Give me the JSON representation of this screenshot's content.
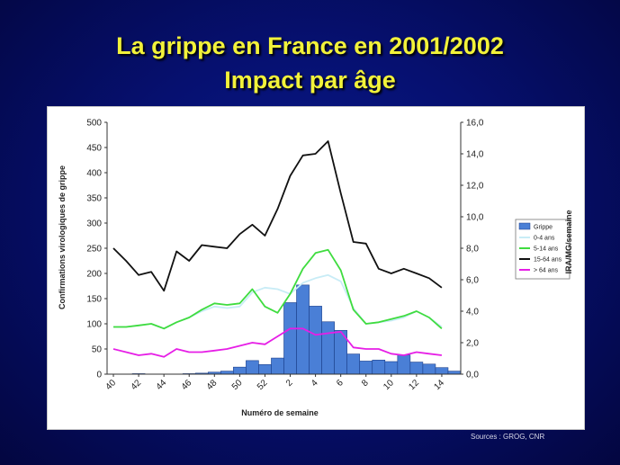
{
  "slide": {
    "title_line1": "La grippe en France en 2001/2002",
    "title_line2": "Impact par âge",
    "sources": "Sources : GROG, CNR"
  },
  "colors": {
    "background": "#061070",
    "title": "#f2f23a",
    "bars": "#4a7fd6",
    "age_0_4": "#c8ecf6",
    "age_5_14": "#3fdc3f",
    "age_15_64": "#111111",
    "age_65_plus": "#e61ee6"
  },
  "chart_data": {
    "type": "bar",
    "xlabel": "Numéro de semaine",
    "ylabel_left": "Confirmations virologiques de grippe",
    "ylabel_right": "IRA/MG/semaine",
    "left_axis": {
      "min": 0,
      "max": 500,
      "ticks": [
        "0",
        "50",
        "100",
        "150",
        "200",
        "250",
        "300",
        "350",
        "400",
        "450",
        "500"
      ]
    },
    "right_axis": {
      "min": 0,
      "max": 16,
      "ticks": [
        "0,0",
        "2,0",
        "4,0",
        "6,0",
        "8,0",
        "10,0",
        "12,0",
        "14,0",
        "16,0"
      ]
    },
    "weeks": [
      40,
      41,
      42,
      43,
      44,
      45,
      46,
      47,
      48,
      49,
      50,
      51,
      52,
      1,
      2,
      3,
      4,
      5,
      6,
      7,
      8,
      9,
      10,
      11,
      12,
      13,
      14,
      15
    ],
    "x_tick_labels": [
      "40",
      "42",
      "44",
      "46",
      "48",
      "50",
      "52",
      "2",
      "4",
      "6",
      "8",
      "10",
      "12",
      "14"
    ],
    "legend_position": "right",
    "legend": [
      "Grippe",
      "0-4 ans",
      "5-14 ans",
      "15-64 ans",
      "> 64 ans"
    ],
    "series": [
      {
        "name": "Grippe",
        "kind": "bar",
        "axis": "left",
        "values": [
          0,
          0,
          1,
          0,
          0,
          0,
          1,
          2,
          4,
          6,
          14,
          27,
          19,
          32,
          142,
          177,
          135,
          104,
          87,
          40,
          26,
          28,
          25,
          38,
          24,
          20,
          13,
          6
        ]
      },
      {
        "name": "0-4 ans",
        "kind": "line",
        "axis": "right",
        "values": [
          3.0,
          3.0,
          3.1,
          3.2,
          2.9,
          3.3,
          3.6,
          4.0,
          4.3,
          4.2,
          4.3,
          5.2,
          5.5,
          5.4,
          5.1,
          5.8,
          6.1,
          6.3,
          5.9,
          4.2,
          3.2,
          3.3,
          3.4,
          3.6,
          4.0,
          3.6,
          3.0,
          null
        ]
      },
      {
        "name": "5-14 ans",
        "kind": "line",
        "axis": "right",
        "values": [
          3.0,
          3.0,
          3.1,
          3.2,
          2.9,
          3.3,
          3.6,
          4.1,
          4.5,
          4.4,
          4.5,
          5.4,
          4.3,
          3.9,
          5.1,
          6.7,
          7.7,
          7.9,
          6.6,
          4.1,
          3.2,
          3.3,
          3.5,
          3.7,
          4.0,
          3.6,
          2.9,
          null
        ]
      },
      {
        "name": "15-64 ans",
        "kind": "line",
        "axis": "right",
        "values": [
          8.0,
          7.2,
          6.3,
          6.5,
          5.3,
          7.8,
          7.2,
          8.2,
          8.1,
          8.0,
          8.9,
          9.5,
          8.8,
          10.5,
          12.6,
          13.9,
          14.0,
          14.8,
          11.5,
          8.4,
          8.3,
          6.7,
          6.4,
          6.7,
          6.4,
          6.1,
          5.5,
          null
        ]
      },
      {
        "name": "> 64 ans",
        "kind": "line",
        "axis": "right",
        "values": [
          1.6,
          1.4,
          1.2,
          1.3,
          1.1,
          1.6,
          1.4,
          1.4,
          1.5,
          1.6,
          1.8,
          2.0,
          1.9,
          2.4,
          2.9,
          2.9,
          2.5,
          2.6,
          2.7,
          1.7,
          1.6,
          1.6,
          1.3,
          1.2,
          1.4,
          1.3,
          1.2,
          null
        ]
      }
    ]
  }
}
